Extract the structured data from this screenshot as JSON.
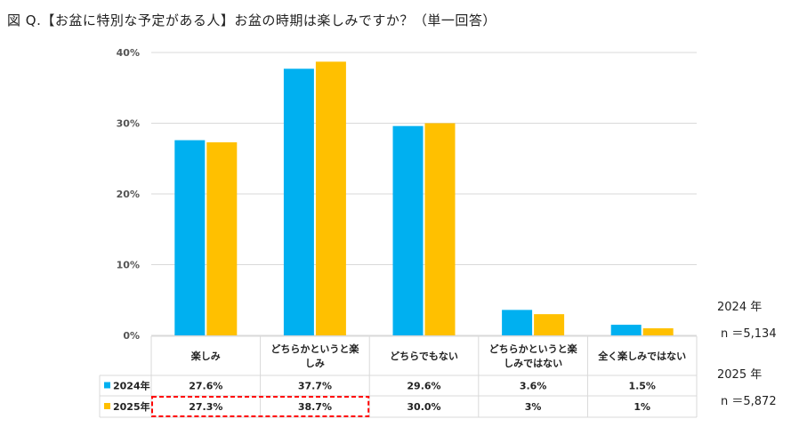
{
  "title": "図 Q.【お盆に特別な予定がある人】お盆の時期は楽しみですか？（単一回答）",
  "notes": {
    "y2024": "2024 年",
    "n2024": "n ＝5,134",
    "y2025": "2025 年",
    "n2025": "n ＝5,872"
  },
  "colors": {
    "s2024": "#00B0F0",
    "s2025": "#FFC000",
    "highlight": "#FF0000",
    "grid": "#D9D9D9",
    "table_border": "#D9D9D9"
  },
  "chart_data": {
    "type": "bar",
    "title": "図 Q.【お盆に特別な予定がある人】お盆の時期は楽しみですか？（単一回答）",
    "categories": [
      [
        "楽しみ"
      ],
      [
        "どちらかというと楽",
        "しみ"
      ],
      [
        "どちらでもない"
      ],
      [
        "どちらかというと楽",
        "しみではない"
      ],
      [
        "全く楽しみではない"
      ]
    ],
    "ylim": [
      0,
      40
    ],
    "yticks": [
      0,
      10,
      20,
      30,
      40
    ],
    "ytick_labels": [
      "0%",
      "10%",
      "20%",
      "30%",
      "40%"
    ],
    "grid": true,
    "legend": "data table below chart",
    "series": [
      {
        "name": "2024年",
        "values": [
          27.6,
          37.7,
          29.6,
          3.6,
          1.5
        ],
        "labels": [
          "27.6%",
          "37.7%",
          "29.6%",
          "3.6%",
          "1.5%"
        ]
      },
      {
        "name": "2025年",
        "values": [
          27.3,
          38.7,
          30.0,
          3,
          1
        ],
        "labels": [
          "27.3%",
          "38.7%",
          "30.0%",
          "3%",
          "1%"
        ]
      }
    ],
    "highlighted_cells": {
      "series": "2025年",
      "categories": [
        0,
        1
      ]
    }
  }
}
